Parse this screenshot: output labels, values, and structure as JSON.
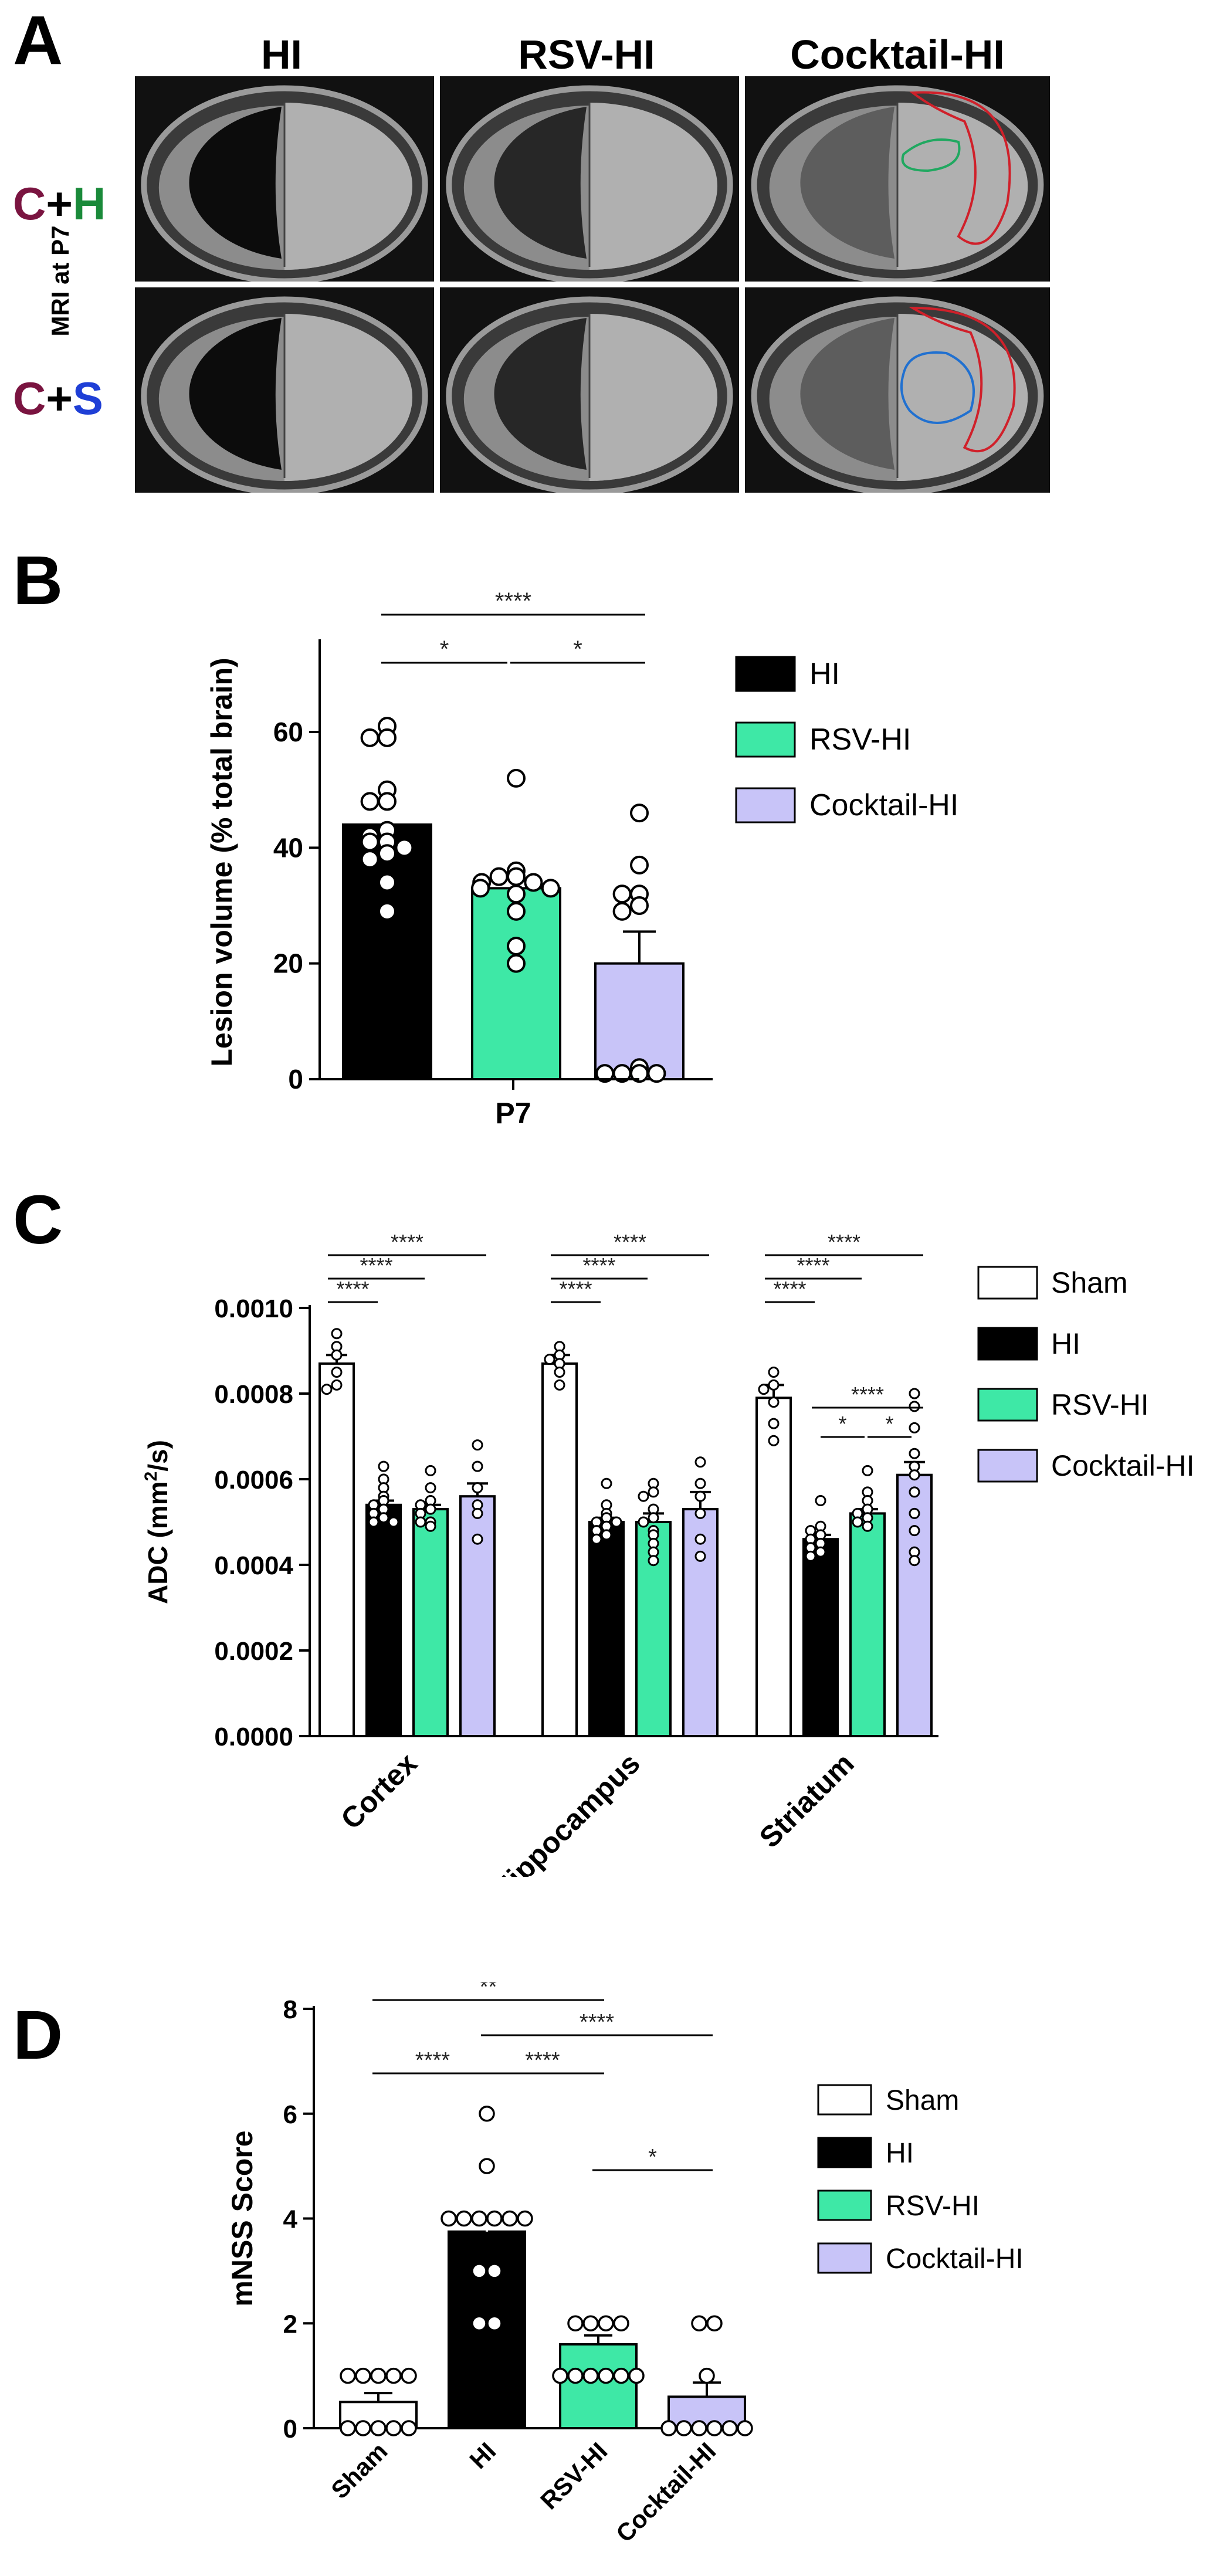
{
  "panel_A": {
    "letter": "A",
    "columns": [
      "HI",
      "RSV-HI",
      "Cocktail-HI"
    ],
    "side_label": "MRI at P7",
    "rows": [
      {
        "c": "C",
        "plus": "+",
        "x": "H",
        "x_color": "#1a8a3a"
      },
      {
        "c": "C",
        "plus": "+",
        "x": "S",
        "x_color": "#1f3fd6"
      }
    ],
    "c_color": "#7a1440"
  },
  "chart_data": [
    {
      "panel": "B",
      "type": "bar",
      "categories": [
        "HI",
        "RSV-HI",
        "Cocktail-HI"
      ],
      "xlabel": "P7",
      "ylabel": "Lesion volume (% total brain)",
      "ylim": [
        0,
        75
      ],
      "yticks": [
        0,
        20,
        40,
        60
      ],
      "colors": [
        "#000000",
        "#3ee8a6",
        "#c8c4f8"
      ],
      "means": [
        44,
        33,
        20
      ],
      "sem": [
        2.2,
        1.6,
        5.5
      ],
      "points": [
        [
          61,
          59,
          59,
          50,
          48,
          48,
          43,
          42,
          41,
          41,
          40,
          39,
          38,
          34,
          29
        ],
        [
          52,
          36,
          35,
          35,
          34,
          34,
          33,
          33,
          32,
          29,
          23,
          20
        ],
        [
          46,
          37,
          32,
          32,
          30,
          29,
          2,
          1,
          1,
          1,
          1
        ]
      ],
      "legend": [
        "HI",
        "RSV-HI",
        "Cocktail-HI"
      ],
      "significance": [
        {
          "a": 0,
          "b": 1,
          "label": "*"
        },
        {
          "a": 1,
          "b": 2,
          "label": "*"
        },
        {
          "a": 0,
          "b": 2,
          "label": "****"
        }
      ]
    },
    {
      "panel": "C",
      "type": "bar",
      "categories": [
        "Cortex",
        "Hippocampus",
        "Striatum"
      ],
      "series_names": [
        "Sham",
        "HI",
        "RSV-HI",
        "Cocktail-HI"
      ],
      "colors": [
        "#ffffff",
        "#000000",
        "#3ee8a6",
        "#c8c4f8"
      ],
      "ylabel": "ADC (mm²/s)",
      "ylabel_parts": [
        "ADC (mm",
        "2",
        "/s)"
      ],
      "ylim": [
        0,
        0.001
      ],
      "yticks": [
        "0.0000",
        "0.0002",
        "0.0004",
        "0.0006",
        "0.0008",
        "0.0010"
      ],
      "means": [
        [
          0.00087,
          0.00054,
          0.00053,
          0.00056
        ],
        [
          0.00087,
          0.0005,
          0.0005,
          0.00053
        ],
        [
          0.00079,
          0.00046,
          0.00052,
          0.00061
        ]
      ],
      "sem": [
        [
          2e-05,
          1e-05,
          1e-05,
          3e-05
        ],
        [
          2e-05,
          1e-05,
          2e-05,
          4e-05
        ],
        [
          3e-05,
          1e-05,
          1e-05,
          3e-05
        ]
      ],
      "points": [
        [
          [
            0.00094,
            0.00091,
            0.00089,
            0.00085,
            0.00082,
            0.00081
          ],
          [
            0.00063,
            0.0006,
            0.00058,
            0.00056,
            0.00055,
            0.00054,
            0.00053,
            0.00052,
            0.00051,
            0.0005,
            0.0005
          ],
          [
            0.00062,
            0.00058,
            0.00055,
            0.00054,
            0.00053,
            0.00052,
            0.0005,
            0.0005,
            0.00049
          ],
          [
            0.00068,
            0.00063,
            0.00058,
            0.00054,
            0.00052,
            0.00046
          ]
        ],
        [
          [
            0.00091,
            0.00089,
            0.00088,
            0.00087,
            0.00085,
            0.00082
          ],
          [
            0.00059,
            0.00054,
            0.00052,
            0.00051,
            0.0005,
            0.0005,
            0.00049,
            0.00048,
            0.00047,
            0.00046
          ],
          [
            0.00059,
            0.00057,
            0.00056,
            0.00053,
            0.00051,
            0.0005,
            0.00048,
            0.00047,
            0.00045,
            0.00043,
            0.00041
          ],
          [
            0.00064,
            0.00059,
            0.00056,
            0.00052,
            0.00046,
            0.00042
          ]
        ],
        [
          [
            0.00085,
            0.00082,
            0.00081,
            0.00078,
            0.00073,
            0.00069
          ],
          [
            0.00055,
            0.00049,
            0.00048,
            0.00047,
            0.00046,
            0.00045,
            0.00044,
            0.00043,
            0.00042
          ],
          [
            0.00062,
            0.00057,
            0.00055,
            0.00053,
            0.00052,
            0.00051,
            0.0005,
            0.00049
          ],
          [
            0.0008,
            0.00077,
            0.00072,
            0.00066,
            0.00063,
            0.00061,
            0.00057,
            0.00052,
            0.00048,
            0.00043,
            0.00041
          ]
        ]
      ],
      "legend": [
        "Sham",
        "HI",
        "RSV-HI",
        "Cocktail-HI"
      ],
      "significance": [
        {
          "g": 0,
          "a": 0,
          "b": 1,
          "label": "****"
        },
        {
          "g": 0,
          "a": 0,
          "b": 2,
          "label": "****"
        },
        {
          "g": 0,
          "a": 0,
          "b": 3,
          "label": "****"
        },
        {
          "g": 1,
          "a": 0,
          "b": 1,
          "label": "****"
        },
        {
          "g": 1,
          "a": 0,
          "b": 2,
          "label": "****"
        },
        {
          "g": 1,
          "a": 0,
          "b": 3,
          "label": "****"
        },
        {
          "g": 2,
          "a": 0,
          "b": 1,
          "label": "****"
        },
        {
          "g": 2,
          "a": 0,
          "b": 2,
          "label": "****"
        },
        {
          "g": 2,
          "a": 0,
          "b": 3,
          "label": "****"
        },
        {
          "g": 2,
          "a": 1,
          "b": 3,
          "label": "****"
        },
        {
          "g": 2,
          "a": 1,
          "b": 2,
          "label": "*"
        },
        {
          "g": 2,
          "a": 2,
          "b": 3,
          "label": "*"
        }
      ]
    },
    {
      "panel": "D",
      "type": "bar",
      "categories": [
        "Sham",
        "HI",
        "RSV-HI",
        "Cocktail-HI"
      ],
      "colors": [
        "#ffffff",
        "#000000",
        "#3ee8a6",
        "#c8c4f8"
      ],
      "ylabel": "mNSS Score",
      "ylim": [
        0,
        8
      ],
      "yticks": [
        0,
        2,
        4,
        6,
        8
      ],
      "means": [
        0.5,
        3.75,
        1.6,
        0.6
      ],
      "sem": [
        0.17,
        0.3,
        0.17,
        0.27
      ],
      "points": [
        [
          1,
          1,
          1,
          1,
          1,
          0,
          0,
          0,
          0,
          0
        ],
        [
          6,
          5,
          4,
          4,
          4,
          4,
          4,
          4,
          3,
          3,
          2,
          2
        ],
        [
          2,
          2,
          2,
          2,
          1,
          1,
          1,
          1,
          1,
          1
        ],
        [
          2,
          2,
          1,
          0,
          0,
          0,
          0,
          0,
          0
        ]
      ],
      "legend": [
        "Sham",
        "HI",
        "RSV-HI",
        "Cocktail-HI"
      ],
      "significance": [
        {
          "a": 0,
          "b": 1,
          "label": "****"
        },
        {
          "a": 1,
          "b": 2,
          "label": "****"
        },
        {
          "a": 2,
          "b": 3,
          "label": "*"
        },
        {
          "a": 0,
          "b": 2,
          "label": "**"
        },
        {
          "a": 1,
          "b": 3,
          "label": "****"
        }
      ]
    }
  ]
}
